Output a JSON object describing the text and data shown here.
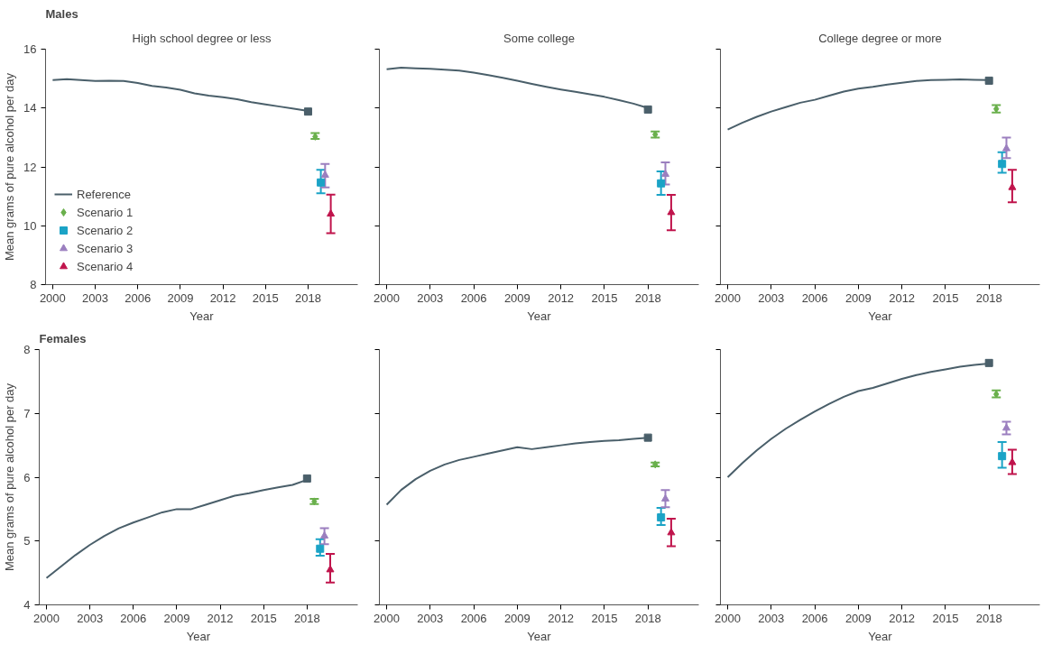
{
  "chart_data": [
    {
      "type": "line",
      "title": "Males",
      "subtitle": "High school degree or less",
      "xlabel": "Year",
      "ylabel": "Mean grams of pure alcohol per day",
      "xlim": [
        1999.5,
        2021.5
      ],
      "xticks": [
        2000,
        2003,
        2006,
        2009,
        2012,
        2015,
        2018
      ],
      "ylim": [
        8,
        16
      ],
      "yticks": [
        8,
        10,
        12,
        14,
        16
      ],
      "grid": false,
      "legend": "bottom left",
      "series": [
        {
          "name": "Reference",
          "color": "#4a5f6a",
          "x": [
            2000,
            2001,
            2002,
            2003,
            2004,
            2005,
            2006,
            2007,
            2008,
            2009,
            2010,
            2011,
            2012,
            2013,
            2014,
            2015,
            2016,
            2017,
            2018
          ],
          "values": [
            14.95,
            14.98,
            14.95,
            14.92,
            14.93,
            14.92,
            14.85,
            14.75,
            14.7,
            14.62,
            14.5,
            14.42,
            14.37,
            14.3,
            14.2,
            14.12,
            14.05,
            13.98,
            13.9
          ]
        },
        {
          "type": "scatter",
          "color": "#4a5f6a",
          "marker": "square",
          "x": [
            2018
          ],
          "values": [
            13.88
          ]
        },
        {
          "name": "Scenario 1",
          "type": "scatter",
          "color": "#6ab04c",
          "marker": "diamond",
          "x": [
            2018.5
          ],
          "values": [
            13.03
          ],
          "errors": [
            [
              12.95,
              13.15
            ]
          ]
        },
        {
          "name": "Scenario 2",
          "type": "scatter",
          "color": "#1ba3c6",
          "marker": "square",
          "x": [
            2018.9
          ],
          "values": [
            11.47
          ],
          "errors": [
            [
              11.1,
              11.9
            ]
          ]
        },
        {
          "name": "Scenario 3",
          "type": "scatter",
          "color": "#9b7fbf",
          "marker": "triangle",
          "x": [
            2019.2
          ],
          "values": [
            11.72
          ],
          "errors": [
            [
              11.3,
              12.1
            ]
          ]
        },
        {
          "name": "Scenario 4",
          "type": "scatter",
          "color": "#c0144c",
          "marker": "triangle",
          "x": [
            2019.6
          ],
          "values": [
            10.4
          ],
          "errors": [
            [
              9.75,
              11.06
            ]
          ]
        }
      ]
    },
    {
      "type": "line",
      "subtitle": "Some college",
      "xlabel": "Year",
      "xlim": [
        1999.5,
        2021.5
      ],
      "xticks": [
        2000,
        2003,
        2006,
        2009,
        2012,
        2015,
        2018
      ],
      "ylim": [
        8,
        16
      ],
      "yticks": [
        8,
        10,
        12,
        14,
        16
      ],
      "tick_labels": "x",
      "grid": false,
      "series": [
        {
          "color": "#4a5f6a",
          "x": [
            2000,
            2001,
            2002,
            2003,
            2004,
            2005,
            2006,
            2007,
            2008,
            2009,
            2010,
            2011,
            2012,
            2013,
            2014,
            2015,
            2016,
            2017,
            2018
          ],
          "values": [
            15.32,
            15.37,
            15.35,
            15.33,
            15.3,
            15.27,
            15.2,
            15.12,
            15.03,
            14.93,
            14.82,
            14.72,
            14.63,
            14.55,
            14.47,
            14.38,
            14.27,
            14.15,
            14.0
          ]
        },
        {
          "type": "scatter",
          "color": "#4a5f6a",
          "marker": "square",
          "x": [
            2018
          ],
          "values": [
            13.95
          ]
        },
        {
          "type": "scatter",
          "color": "#6ab04c",
          "marker": "diamond",
          "x": [
            2018.5
          ],
          "values": [
            13.1
          ],
          "errors": [
            [
              13.0,
              13.2
            ]
          ]
        },
        {
          "type": "scatter",
          "color": "#1ba3c6",
          "marker": "square",
          "x": [
            2018.9
          ],
          "values": [
            11.44
          ],
          "errors": [
            [
              11.05,
              11.85
            ]
          ]
        },
        {
          "type": "scatter",
          "color": "#9b7fbf",
          "marker": "triangle",
          "x": [
            2019.2
          ],
          "values": [
            11.75
          ],
          "errors": [
            [
              11.4,
              12.15
            ]
          ]
        },
        {
          "type": "scatter",
          "color": "#c0144c",
          "marker": "triangle",
          "x": [
            2019.6
          ],
          "values": [
            10.45
          ],
          "errors": [
            [
              9.85,
              11.05
            ]
          ]
        }
      ]
    },
    {
      "type": "line",
      "subtitle": "College degree or more",
      "xlabel": "Year",
      "xlim": [
        1999.5,
        2021.5
      ],
      "xticks": [
        2000,
        2003,
        2006,
        2009,
        2012,
        2015,
        2018
      ],
      "ylim": [
        8,
        16
      ],
      "yticks": [
        8,
        10,
        12,
        14,
        16
      ],
      "tick_labels": "x",
      "grid": false,
      "series": [
        {
          "color": "#4a5f6a",
          "x": [
            2000,
            2001,
            2002,
            2003,
            2004,
            2005,
            2006,
            2007,
            2008,
            2009,
            2010,
            2011,
            2012,
            2013,
            2014,
            2015,
            2016,
            2017,
            2018
          ],
          "values": [
            13.27,
            13.5,
            13.7,
            13.88,
            14.03,
            14.18,
            14.28,
            14.42,
            14.56,
            14.66,
            14.72,
            14.8,
            14.86,
            14.92,
            14.95,
            14.96,
            14.97,
            14.96,
            14.95
          ]
        },
        {
          "type": "scatter",
          "color": "#4a5f6a",
          "marker": "square",
          "x": [
            2018
          ],
          "values": [
            14.93
          ]
        },
        {
          "type": "scatter",
          "color": "#6ab04c",
          "marker": "diamond",
          "x": [
            2018.5
          ],
          "values": [
            13.97
          ],
          "errors": [
            [
              13.85,
              14.1
            ]
          ]
        },
        {
          "type": "scatter",
          "color": "#1ba3c6",
          "marker": "square",
          "x": [
            2018.9
          ],
          "values": [
            12.1
          ],
          "errors": [
            [
              11.8,
              12.5
            ]
          ]
        },
        {
          "type": "scatter",
          "color": "#9b7fbf",
          "marker": "triangle",
          "x": [
            2019.2
          ],
          "values": [
            12.62
          ],
          "errors": [
            [
              12.3,
              13.0
            ]
          ]
        },
        {
          "type": "scatter",
          "color": "#c0144c",
          "marker": "triangle",
          "x": [
            2019.6
          ],
          "values": [
            11.3
          ],
          "errors": [
            [
              10.8,
              11.9
            ]
          ]
        }
      ]
    },
    {
      "type": "line",
      "title": "Females",
      "xlabel": "Year",
      "ylabel": "Mean grams of pure alcohol per day",
      "xlim": [
        1999.5,
        2021.5
      ],
      "xticks": [
        2000,
        2003,
        2006,
        2009,
        2012,
        2015,
        2018
      ],
      "ylim": [
        4,
        8
      ],
      "yticks": [
        4,
        5,
        6,
        7,
        8
      ],
      "grid": false,
      "series": [
        {
          "color": "#4a5f6a",
          "x": [
            2000,
            2001,
            2002,
            2003,
            2004,
            2005,
            2006,
            2007,
            2008,
            2009,
            2010,
            2011,
            2012,
            2013,
            2014,
            2015,
            2016,
            2017,
            2018
          ],
          "values": [
            4.42,
            4.6,
            4.78,
            4.94,
            5.08,
            5.2,
            5.29,
            5.37,
            5.45,
            5.5,
            5.5,
            5.57,
            5.64,
            5.71,
            5.75,
            5.8,
            5.84,
            5.88,
            5.96
          ]
        },
        {
          "type": "scatter",
          "color": "#4a5f6a",
          "marker": "square",
          "x": [
            2018
          ],
          "values": [
            5.98
          ]
        },
        {
          "type": "scatter",
          "color": "#6ab04c",
          "marker": "diamond",
          "x": [
            2018.5
          ],
          "values": [
            5.62
          ],
          "errors": [
            [
              5.58,
              5.66
            ]
          ]
        },
        {
          "type": "scatter",
          "color": "#1ba3c6",
          "marker": "square",
          "x": [
            2018.9
          ],
          "values": [
            4.88
          ],
          "errors": [
            [
              4.77,
              5.03
            ]
          ]
        },
        {
          "type": "scatter",
          "color": "#9b7fbf",
          "marker": "triangle",
          "x": [
            2019.2
          ],
          "values": [
            5.08
          ],
          "errors": [
            [
              4.95,
              5.2
            ]
          ]
        },
        {
          "type": "scatter",
          "color": "#c0144c",
          "marker": "triangle",
          "x": [
            2019.6
          ],
          "values": [
            4.55
          ],
          "errors": [
            [
              4.35,
              4.8
            ]
          ]
        }
      ]
    },
    {
      "type": "line",
      "xlabel": "Year",
      "xlim": [
        1999.5,
        2021.5
      ],
      "xticks": [
        2000,
        2003,
        2006,
        2009,
        2012,
        2015,
        2018
      ],
      "ylim": [
        4,
        8
      ],
      "yticks": [
        4,
        5,
        6,
        7,
        8
      ],
      "tick_labels": "x",
      "grid": false,
      "series": [
        {
          "color": "#4a5f6a",
          "x": [
            2000,
            2001,
            2002,
            2003,
            2004,
            2005,
            2006,
            2007,
            2008,
            2009,
            2010,
            2011,
            2012,
            2013,
            2014,
            2015,
            2016,
            2017,
            2018
          ],
          "values": [
            5.57,
            5.8,
            5.97,
            6.1,
            6.2,
            6.27,
            6.32,
            6.37,
            6.42,
            6.47,
            6.44,
            6.47,
            6.5,
            6.53,
            6.55,
            6.57,
            6.58,
            6.6,
            6.62
          ]
        },
        {
          "type": "scatter",
          "color": "#4a5f6a",
          "marker": "square",
          "x": [
            2018
          ],
          "values": [
            6.62
          ]
        },
        {
          "type": "scatter",
          "color": "#6ab04c",
          "marker": "diamond",
          "x": [
            2018.5
          ],
          "values": [
            6.2
          ],
          "errors": [
            [
              6.17,
              6.23
            ]
          ]
        },
        {
          "type": "scatter",
          "color": "#1ba3c6",
          "marker": "square",
          "x": [
            2018.9
          ],
          "values": [
            5.37
          ],
          "errors": [
            [
              5.25,
              5.52
            ]
          ]
        },
        {
          "type": "scatter",
          "color": "#9b7fbf",
          "marker": "triangle",
          "x": [
            2019.2
          ],
          "values": [
            5.66
          ],
          "errors": [
            [
              5.53,
              5.8
            ]
          ]
        },
        {
          "type": "scatter",
          "color": "#c0144c",
          "marker": "triangle",
          "x": [
            2019.6
          ],
          "values": [
            5.13
          ],
          "errors": [
            [
              4.92,
              5.35
            ]
          ]
        }
      ]
    },
    {
      "type": "line",
      "xlabel": "Year",
      "xlim": [
        1999.5,
        2021.5
      ],
      "xticks": [
        2000,
        2003,
        2006,
        2009,
        2012,
        2015,
        2018
      ],
      "ylim": [
        4,
        8
      ],
      "yticks": [
        4,
        5,
        6,
        7,
        8
      ],
      "tick_labels": "x",
      "grid": false,
      "series": [
        {
          "color": "#4a5f6a",
          "x": [
            2000,
            2001,
            2002,
            2003,
            2004,
            2005,
            2006,
            2007,
            2008,
            2009,
            2010,
            2011,
            2012,
            2013,
            2014,
            2015,
            2016,
            2017,
            2018
          ],
          "values": [
            6.0,
            6.22,
            6.42,
            6.6,
            6.76,
            6.9,
            7.03,
            7.15,
            7.26,
            7.35,
            7.4,
            7.47,
            7.54,
            7.6,
            7.65,
            7.69,
            7.73,
            7.76,
            7.78
          ]
        },
        {
          "type": "scatter",
          "color": "#4a5f6a",
          "marker": "square",
          "x": [
            2018
          ],
          "values": [
            7.79
          ]
        },
        {
          "type": "scatter",
          "color": "#6ab04c",
          "marker": "diamond",
          "x": [
            2018.5
          ],
          "values": [
            7.3
          ],
          "errors": [
            [
              7.25,
              7.36
            ]
          ]
        },
        {
          "type": "scatter",
          "color": "#1ba3c6",
          "marker": "square",
          "x": [
            2018.9
          ],
          "values": [
            6.33
          ],
          "errors": [
            [
              6.15,
              6.55
            ]
          ]
        },
        {
          "type": "scatter",
          "color": "#9b7fbf",
          "marker": "triangle",
          "x": [
            2019.2
          ],
          "values": [
            6.77
          ],
          "errors": [
            [
              6.67,
              6.87
            ]
          ]
        },
        {
          "type": "scatter",
          "color": "#c0144c",
          "marker": "triangle",
          "x": [
            2019.6
          ],
          "values": [
            6.23
          ],
          "errors": [
            [
              6.05,
              6.43
            ]
          ]
        }
      ]
    }
  ]
}
